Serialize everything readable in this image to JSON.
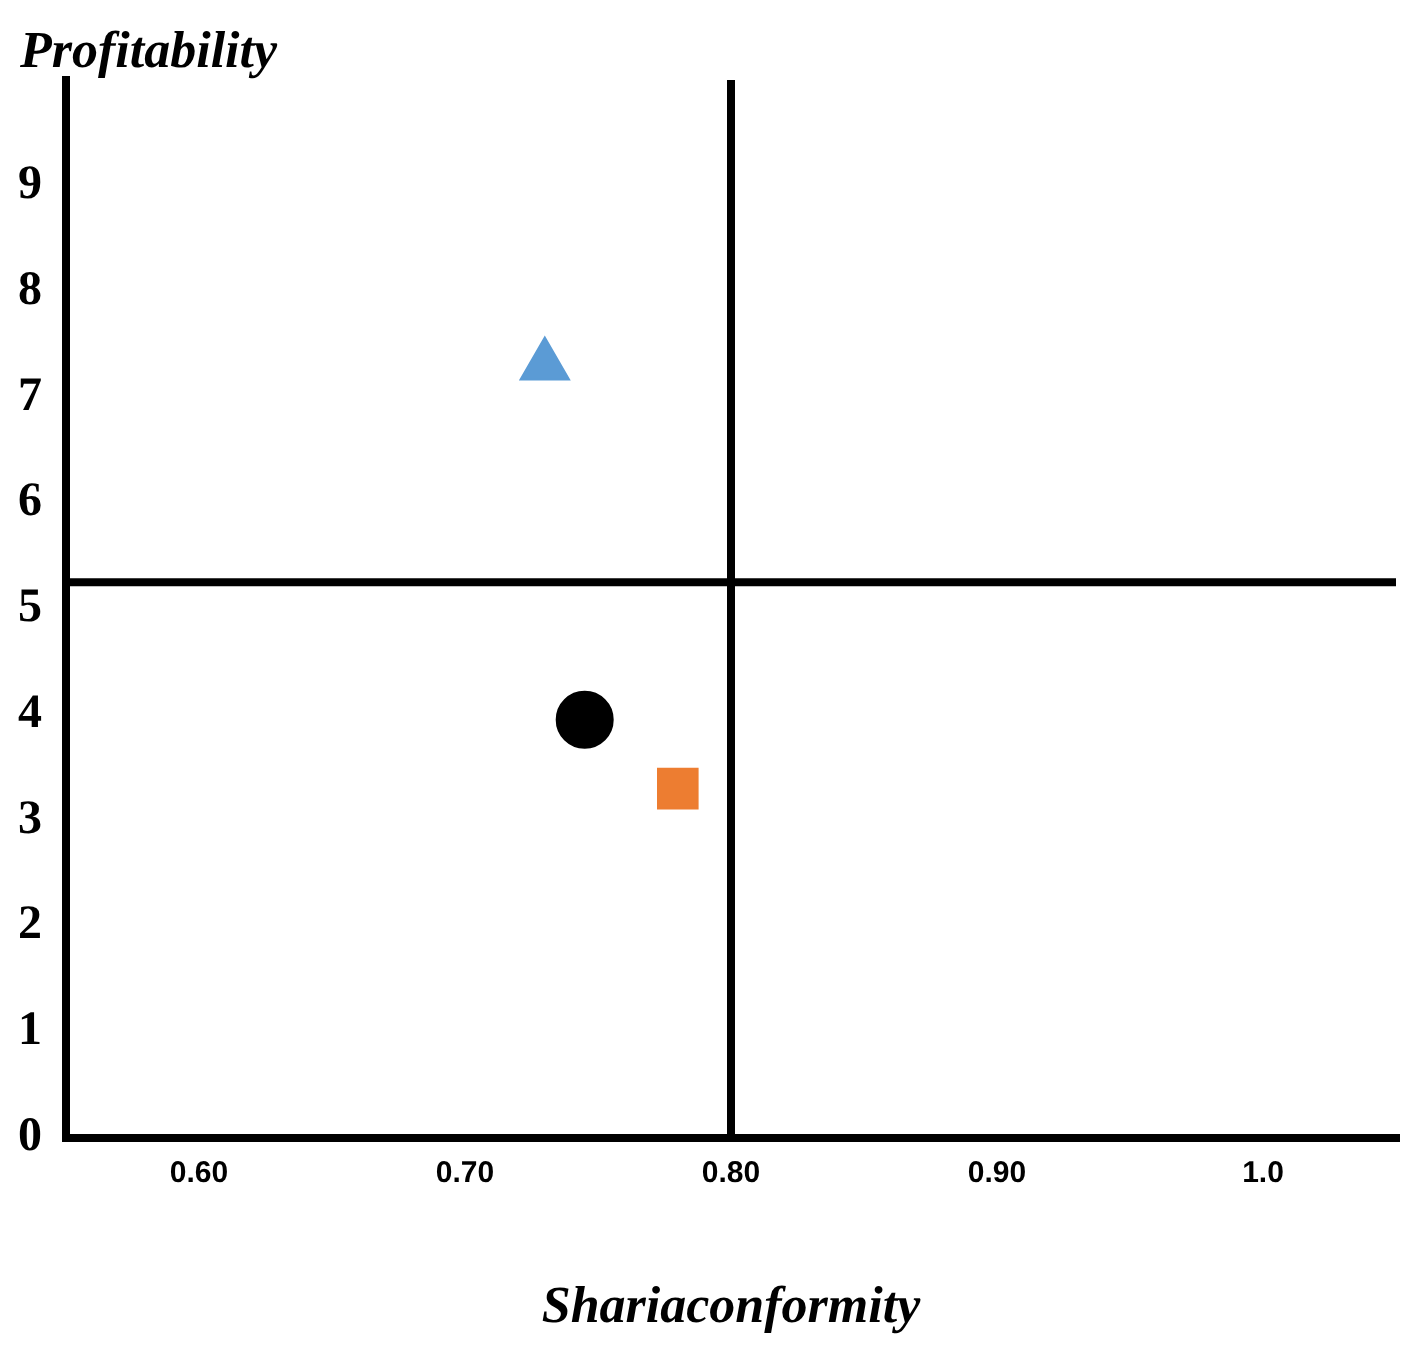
{
  "chart_data": {
    "type": "scatter",
    "xlabel": "Shariaconformity",
    "ylabel": "Profitability",
    "xlim": [
      0.55,
      1.05
    ],
    "xticks": [
      {
        "value": 0.6,
        "label": "0.60"
      },
      {
        "value": 0.7,
        "label": "0.70"
      },
      {
        "value": 0.8,
        "label": "0.80"
      },
      {
        "value": 0.9,
        "label": "0.90"
      },
      {
        "value": 1.0,
        "label": "1.0"
      }
    ],
    "ylim": [
      0,
      10
    ],
    "yticks": [
      0,
      1,
      2,
      3,
      4,
      5,
      6,
      7,
      8,
      9
    ],
    "grid": false,
    "legend": false,
    "series": [
      {
        "color": "#5b9bd5",
        "marker": "triangle",
        "x": [
          0.73
        ],
        "values": [
          7.3
        ]
      },
      {
        "color": "#000000",
        "marker": "circle",
        "x": [
          0.745
        ],
        "values": [
          3.95
        ]
      },
      {
        "color": "#ed7d31",
        "marker": "square",
        "x": [
          0.78
        ],
        "values": [
          3.3
        ]
      }
    ],
    "ref_lines": [
      {
        "axis": "x",
        "value": 0.8,
        "color": "#000000"
      },
      {
        "axis": "y",
        "value": 5.25,
        "color": "#000000"
      }
    ]
  }
}
